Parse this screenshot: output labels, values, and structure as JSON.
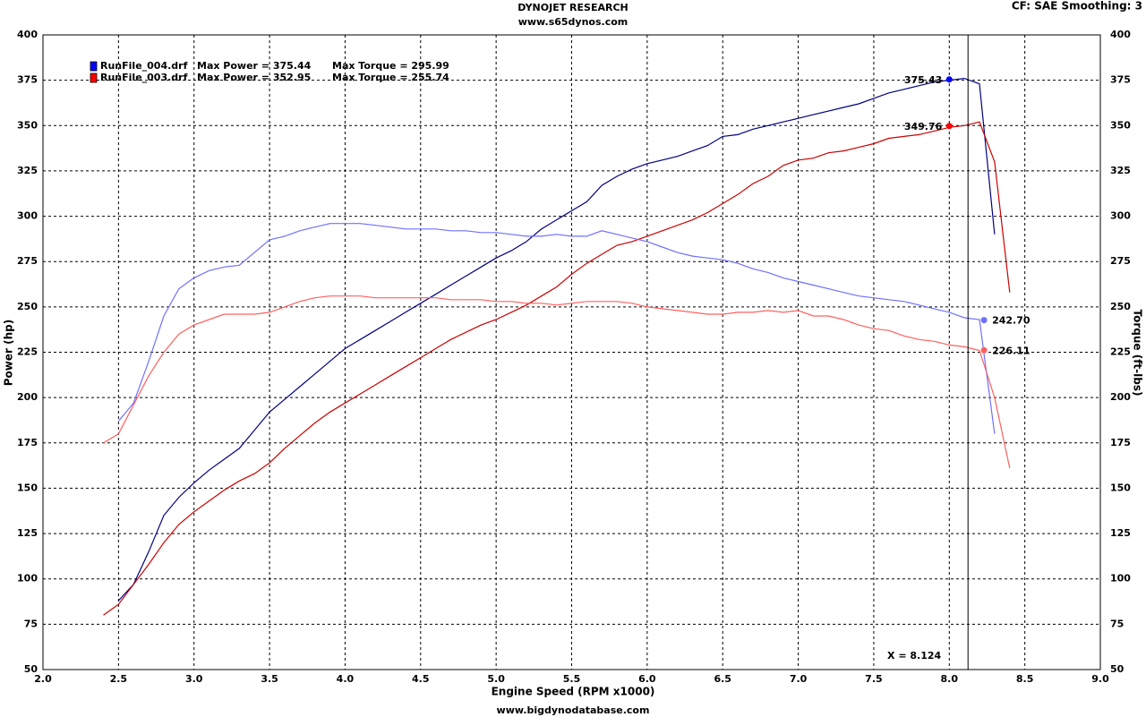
{
  "chart_data": {
    "type": "line",
    "title": "DYNOJET RESEARCH",
    "subtitle": "www.s65dynos.com",
    "settings_text": "CF: SAE  Smoothing: 3",
    "footer": "www.bigdynodatabase.com",
    "xlabel": "Engine Speed (RPM x1000)",
    "ylabel": "Power (hp)",
    "y2label": "Torque (ft-lbs)",
    "xlim": [
      2.0,
      9.0
    ],
    "xticks": [
      {
        "value": 2,
        "label": "2.0"
      },
      2.5,
      {
        "value": 3,
        "label": "3.0"
      },
      3.5,
      {
        "value": 4,
        "label": "4.0"
      },
      4.5,
      {
        "value": 5,
        "label": "5.0"
      },
      5.5,
      {
        "value": 6,
        "label": "6.0"
      },
      6.5,
      {
        "value": 7,
        "label": "7.0"
      },
      7.5,
      {
        "value": 8,
        "label": "8.0"
      },
      8.5,
      {
        "value": 9,
        "label": "9.0"
      }
    ],
    "ylim": [
      50,
      400
    ],
    "yticks": [
      50,
      75,
      100,
      125,
      150,
      175,
      200,
      225,
      250,
      275,
      300,
      325,
      350,
      375,
      400
    ],
    "y2lim": [
      50,
      400
    ],
    "y2ticks": [
      50,
      75,
      100,
      125,
      150,
      175,
      200,
      225,
      250,
      275,
      300,
      325,
      350,
      375,
      400
    ],
    "grid": true,
    "runs": [
      {
        "name": "RunFile_004.drf",
        "max_power": "Max Power = 375.44",
        "max_torque": "Max Torque = 295.99",
        "color": "#0000ff"
      },
      {
        "name": "RunFile_003.drf",
        "max_power": "Max Power = 352.95",
        "max_torque": "Max Torque = 255.74",
        "color": "#ff0000"
      }
    ],
    "x": [
      2.4,
      2.5,
      2.6,
      2.7,
      2.8,
      2.9,
      3.0,
      3.1,
      3.2,
      3.3,
      3.4,
      3.5,
      3.6,
      3.7,
      3.8,
      3.9,
      4.0,
      4.1,
      4.2,
      4.3,
      4.4,
      4.5,
      4.6,
      4.7,
      4.8,
      4.9,
      5.0,
      5.1,
      5.2,
      5.3,
      5.4,
      5.5,
      5.6,
      5.7,
      5.8,
      5.9,
      6.0,
      6.1,
      6.2,
      6.3,
      6.4,
      6.5,
      6.6,
      6.7,
      6.8,
      6.9,
      7.0,
      7.1,
      7.2,
      7.3,
      7.4,
      7.5,
      7.6,
      7.7,
      7.8,
      7.9,
      8.0,
      8.1,
      8.2,
      8.3,
      8.4
    ],
    "series": [
      {
        "color": "#000080",
        "values": [
          null,
          88,
          97,
          115,
          135,
          145,
          153,
          160,
          166,
          172,
          182,
          192,
          199,
          206,
          213,
          220,
          227,
          232,
          237,
          242,
          247,
          252,
          257,
          262,
          267,
          272,
          277,
          281,
          286,
          293,
          298,
          303,
          308,
          317,
          322,
          326,
          329,
          331,
          333,
          336,
          339,
          344,
          345,
          348,
          350,
          352,
          354,
          356,
          358,
          360,
          362,
          365,
          368,
          370,
          372,
          374,
          375,
          376,
          373,
          290,
          null
        ]
      },
      {
        "color": "#cc0000",
        "values": [
          80,
          86,
          97,
          108,
          120,
          130,
          137,
          143,
          149,
          154,
          158,
          164,
          172,
          179,
          186,
          192,
          197,
          202,
          207,
          212,
          217,
          222,
          227,
          232,
          236,
          240,
          243,
          247,
          251,
          256,
          261,
          268,
          274,
          279,
          284,
          286,
          289,
          292,
          295,
          298,
          302,
          307,
          312,
          318,
          322,
          328,
          331,
          332,
          335,
          336,
          338,
          340,
          343,
          344,
          345,
          347,
          349,
          350,
          352,
          330,
          258
        ]
      },
      {
        "color": "#7070ff",
        "axis": "y2",
        "values": [
          null,
          187,
          197,
          220,
          245,
          260,
          266,
          270,
          272,
          273,
          280,
          287,
          289,
          292,
          294,
          296,
          296,
          296,
          295,
          294,
          293,
          293,
          293,
          292,
          292,
          291,
          291,
          290,
          289,
          289,
          290,
          289,
          289,
          292,
          290,
          288,
          286,
          283,
          280,
          278,
          277,
          276,
          274,
          271,
          269,
          266,
          264,
          262,
          260,
          258,
          256,
          255,
          254,
          253,
          251,
          249,
          247,
          244,
          243,
          180,
          null
        ]
      },
      {
        "color": "#ff6060",
        "axis": "y2",
        "values": [
          175,
          180,
          196,
          212,
          225,
          235,
          240,
          243,
          246,
          246,
          246,
          247,
          250,
          253,
          255,
          256,
          256,
          256,
          255,
          255,
          255,
          255,
          255,
          254,
          254,
          254,
          253,
          253,
          252,
          252,
          251,
          252,
          253,
          253,
          253,
          252,
          250,
          249,
          248,
          247,
          246,
          246,
          247,
          247,
          248,
          247,
          248,
          245,
          245,
          243,
          240,
          238,
          237,
          234,
          232,
          231,
          229,
          228,
          226,
          200,
          161
        ]
      }
    ],
    "markers": [
      {
        "x": 8.0,
        "value": 375.43,
        "label": "375.43",
        "color": "#0000ff"
      },
      {
        "x": 8.0,
        "value": 349.76,
        "label": "349.76",
        "color": "#ff0000"
      },
      {
        "x": 8.23,
        "value": 242.7,
        "label": "242.70",
        "axis": "y2",
        "color": "#7070ff"
      },
      {
        "x": 8.23,
        "value": 226.11,
        "label": "226.11",
        "axis": "y2",
        "color": "#ff6060"
      }
    ],
    "cursor": {
      "x": 8.124,
      "label": "X = 8.124"
    }
  }
}
